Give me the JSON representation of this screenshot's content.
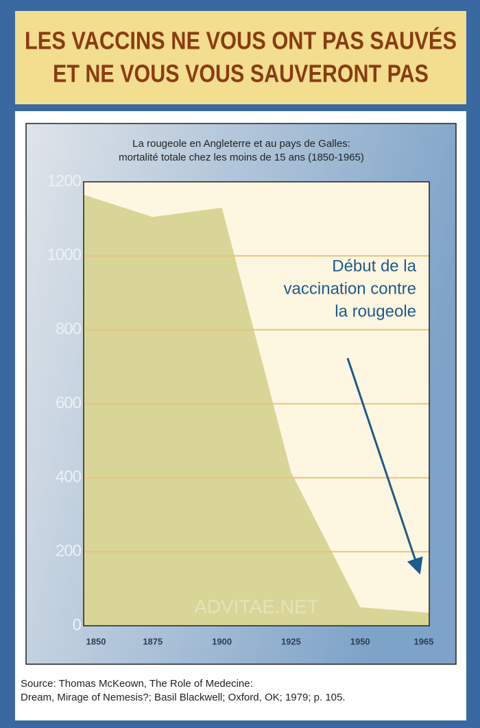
{
  "banner": {
    "lines": [
      "LES VACCINS NE VOUS ONT PAS SAUVÉS",
      "ET NE VOUS VOUS SAUVERONT PAS"
    ]
  },
  "chart_data": {
    "type": "area",
    "title": "La rougeole en Angleterre et au pays de Galles:",
    "subtitle": "mortalité totale chez les moins de 15 ans (1850-1965)",
    "categories": [
      "1850",
      "1875",
      "1900",
      "1925",
      "1950",
      "1965"
    ],
    "values": [
      1165,
      1105,
      1130,
      415,
      50,
      35
    ],
    "color": "#d8d596",
    "ylim": [
      0,
      1200
    ],
    "yticks": [
      0,
      200,
      400,
      600,
      800,
      1000,
      1200
    ],
    "grid": true,
    "annotation": [
      "Début de la",
      "vaccination contre",
      "la rougeole"
    ],
    "watermark": "ADVITAE.NET"
  },
  "source": {
    "lines": [
      "Source: Thomas McKeown, The Role of Medecine:",
      "Dream, Mirage of Nemesis?; Basil Blackwell; Oxford, OK; 1979; p. 105."
    ]
  }
}
